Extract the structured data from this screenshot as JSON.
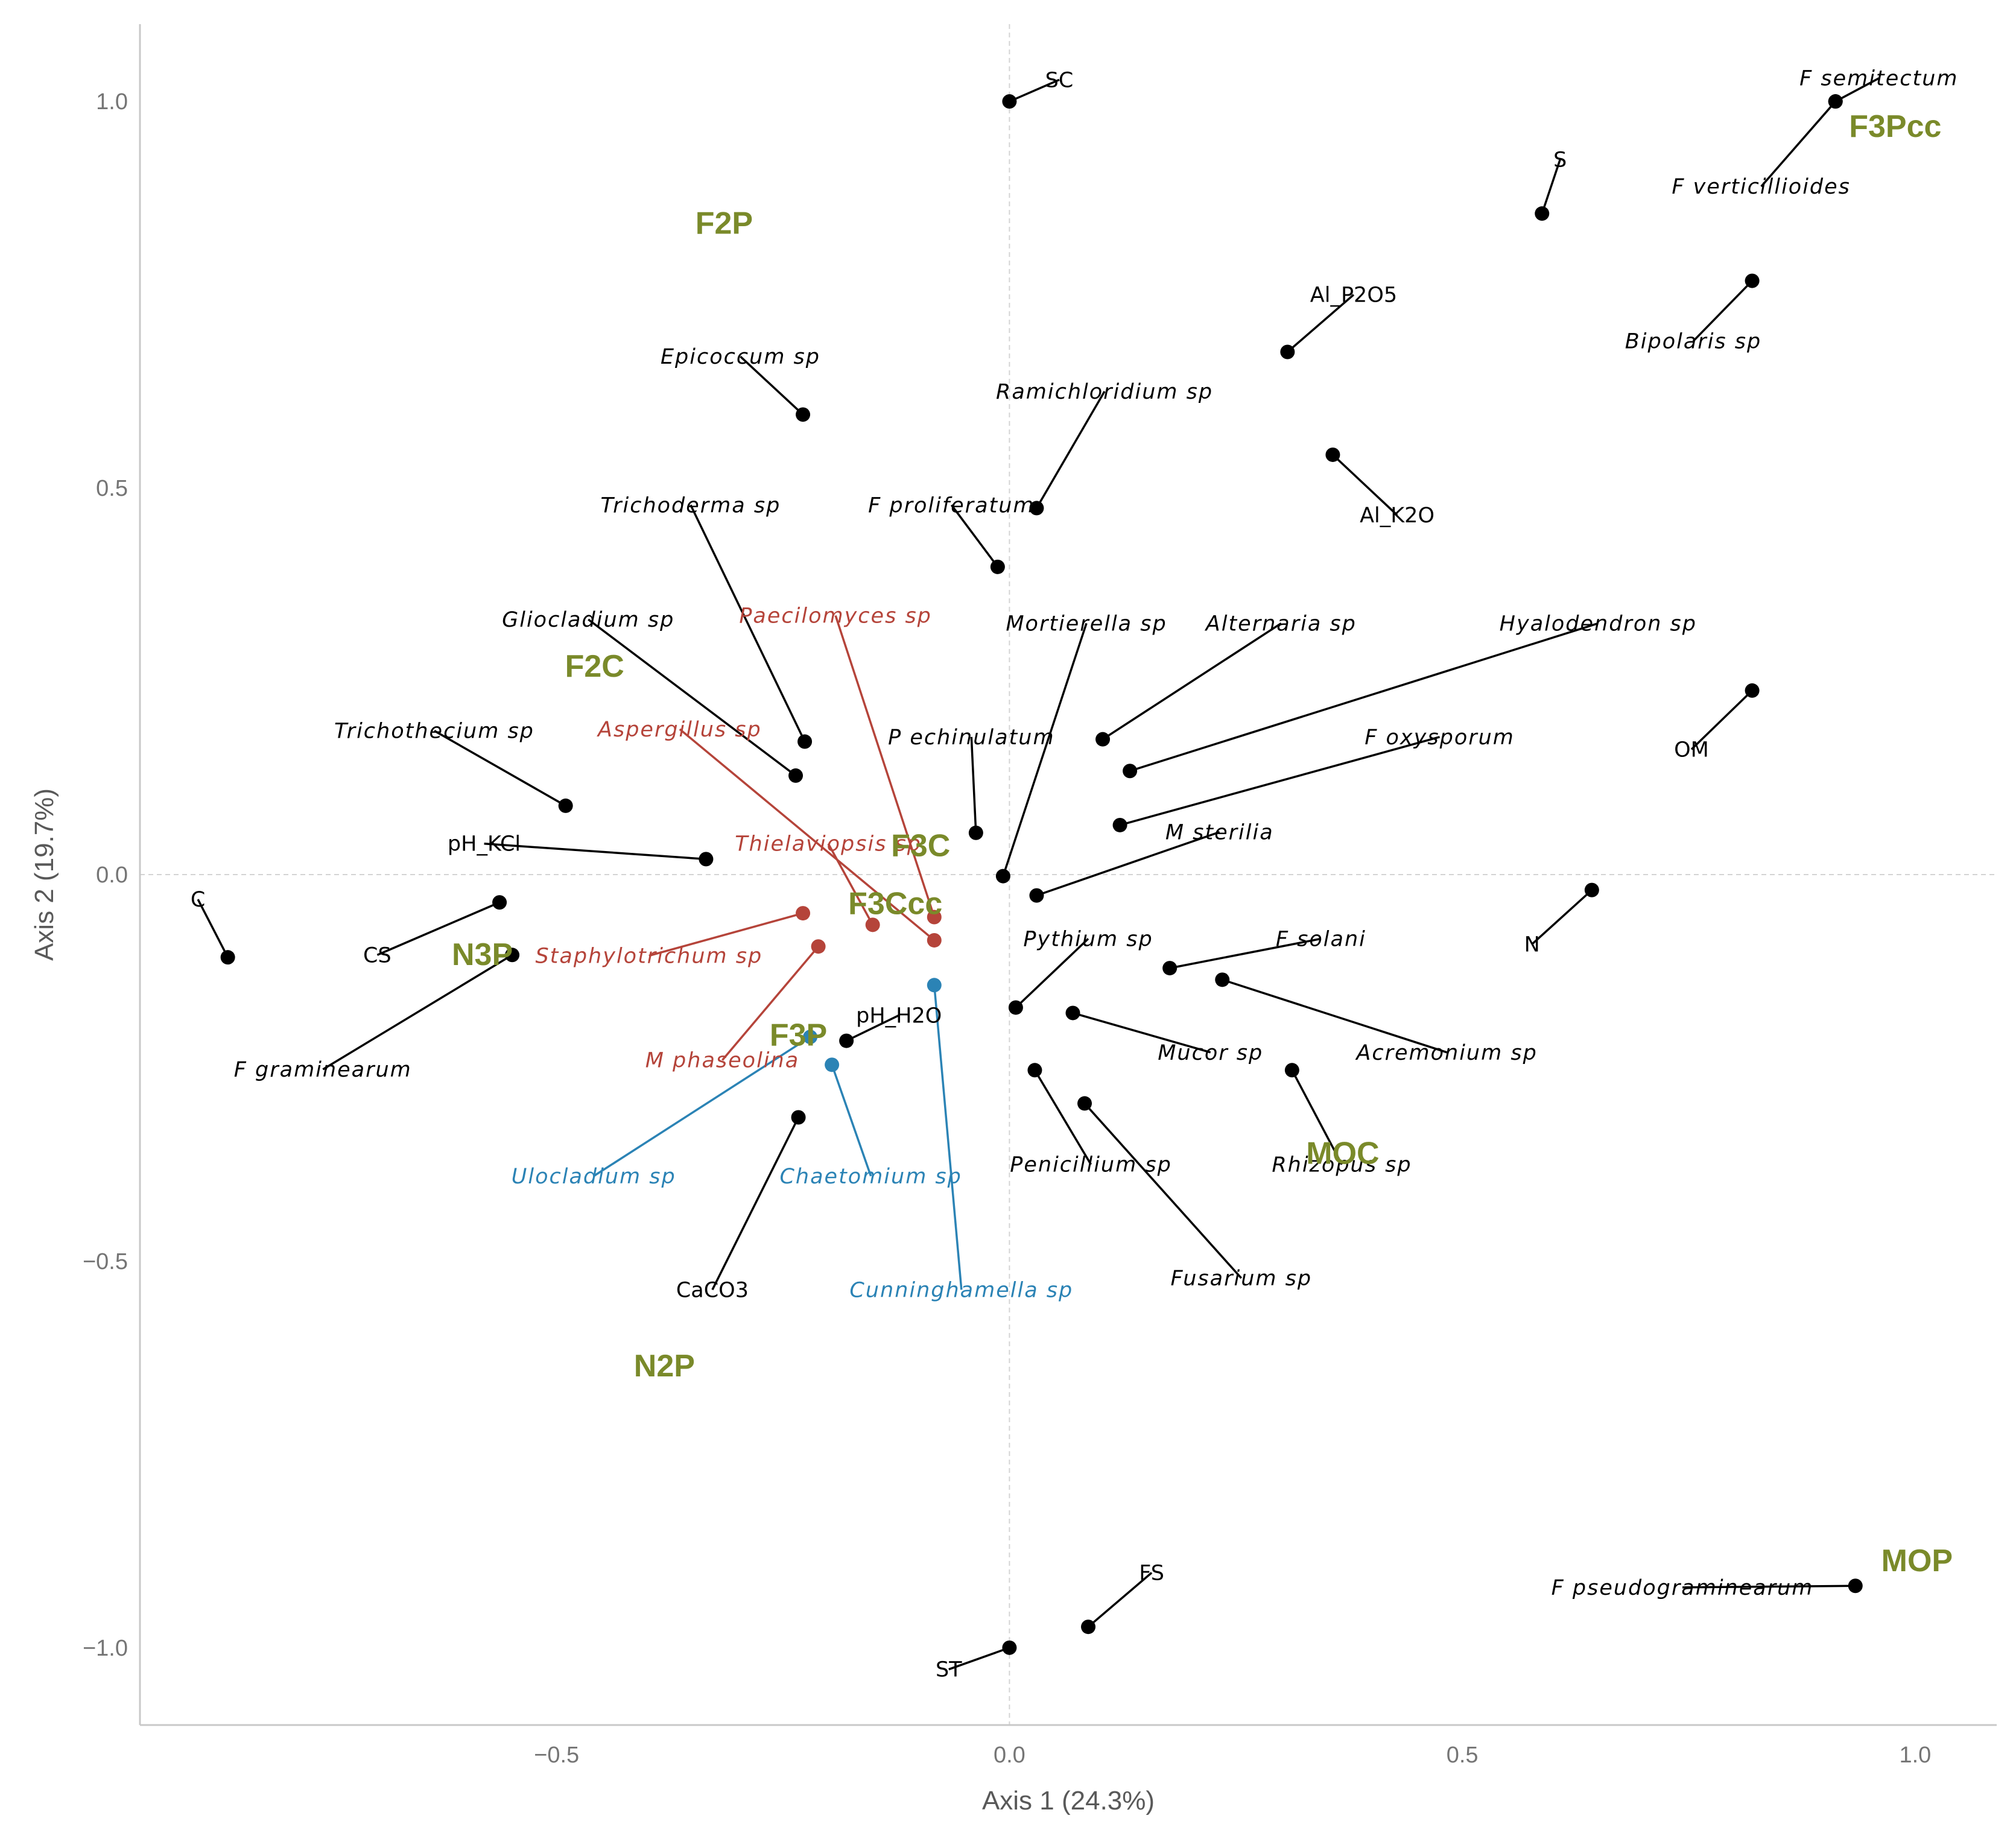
{
  "chart_data": {
    "type": "scatter",
    "title": "",
    "xlabel": "Axis 1 (24.3%)",
    "ylabel": "Axis 2 (19.7%)",
    "xlim": [
      -0.96,
      1.09
    ],
    "ylim": [
      -1.1,
      1.1
    ],
    "xticks": [
      -0.5,
      0.0,
      0.5,
      1.0
    ],
    "yticks": [
      -1.0,
      -0.5,
      0.0,
      0.5,
      1.0
    ],
    "xtick_labels": [
      "−0.5",
      "0.0",
      "0.5",
      "1.0"
    ],
    "ytick_labels": [
      "−1.0",
      "−0.5",
      "0.0",
      "0.5",
      "1.0"
    ],
    "colors": {
      "black": "#000000",
      "red": "#b5443a",
      "blue": "#2b83b5",
      "group": "#7a8a2a",
      "grid": "#d4d4d4"
    },
    "points": [
      {
        "label": "SC",
        "x": 0.0,
        "y": 1.0,
        "lx": 0.055,
        "ly": 1.028,
        "color": "black",
        "italic": false
      },
      {
        "label": "F semitectum",
        "x": 0.912,
        "y": 1.0,
        "lx": 0.96,
        "ly": 1.03,
        "color": "black",
        "italic": true
      },
      {
        "label": "F verticillioides",
        "x": 0.912,
        "y": 1.0,
        "lx": 0.83,
        "ly": 0.89,
        "color": "black",
        "italic": true
      },
      {
        "label": "S",
        "x": 0.588,
        "y": 0.855,
        "lx": 0.608,
        "ly": 0.925,
        "color": "black",
        "italic": false
      },
      {
        "label": "Al_P2O5",
        "x": 0.307,
        "y": 0.676,
        "lx": 0.38,
        "ly": 0.75,
        "color": "black",
        "italic": false
      },
      {
        "label": "Bipolaris sp",
        "x": 0.82,
        "y": 0.768,
        "lx": 0.755,
        "ly": 0.69,
        "color": "black",
        "italic": true
      },
      {
        "label": "Epicoccum sp",
        "x": -0.228,
        "y": 0.595,
        "lx": -0.297,
        "ly": 0.67,
        "color": "black",
        "italic": true
      },
      {
        "label": "Ramichloridium sp",
        "x": 0.03,
        "y": 0.474,
        "lx": 0.105,
        "ly": 0.625,
        "color": "black",
        "italic": true
      },
      {
        "label": "Al_K2O",
        "x": 0.357,
        "y": 0.543,
        "lx": 0.428,
        "ly": 0.465,
        "color": "black",
        "italic": false
      },
      {
        "label": "Trichoderma sp",
        "x": -0.226,
        "y": 0.172,
        "lx": -0.352,
        "ly": 0.478,
        "color": "black",
        "italic": true
      },
      {
        "label": "F proliferatum",
        "x": -0.013,
        "y": 0.398,
        "lx": -0.064,
        "ly": 0.478,
        "color": "black",
        "italic": true
      },
      {
        "label": "Gliocladium sp",
        "x": -0.236,
        "y": 0.128,
        "lx": -0.465,
        "ly": 0.33,
        "color": "black",
        "italic": true
      },
      {
        "label": "Mortierella sp",
        "x": -0.007,
        "y": -0.002,
        "lx": 0.085,
        "ly": 0.325,
        "color": "black",
        "italic": true
      },
      {
        "label": "Alternaria sp",
        "x": 0.103,
        "y": 0.175,
        "lx": 0.3,
        "ly": 0.325,
        "color": "black",
        "italic": true
      },
      {
        "label": "Hyalodendron sp",
        "x": 0.133,
        "y": 0.134,
        "lx": 0.65,
        "ly": 0.325,
        "color": "black",
        "italic": true
      },
      {
        "label": "OM",
        "x": 0.82,
        "y": 0.238,
        "lx": 0.753,
        "ly": 0.162,
        "color": "black",
        "italic": false
      },
      {
        "label": "Trichothecium sp",
        "x": -0.49,
        "y": 0.089,
        "lx": -0.635,
        "ly": 0.186,
        "color": "black",
        "italic": true
      },
      {
        "label": "P echinulatum",
        "x": -0.037,
        "y": 0.054,
        "lx": -0.042,
        "ly": 0.178,
        "color": "black",
        "italic": true
      },
      {
        "label": "F oxysporum",
        "x": 0.122,
        "y": 0.064,
        "lx": 0.475,
        "ly": 0.178,
        "color": "black",
        "italic": true
      },
      {
        "label": "pH_KCl",
        "x": -0.335,
        "y": 0.02,
        "lx": -0.58,
        "ly": 0.04,
        "color": "black",
        "italic": false
      },
      {
        "label": "M sterilia",
        "x": 0.03,
        "y": -0.027,
        "lx": 0.232,
        "ly": 0.055,
        "color": "black",
        "italic": true
      },
      {
        "label": "C",
        "x": -0.863,
        "y": -0.107,
        "lx": -0.896,
        "ly": -0.032,
        "color": "black",
        "italic": false
      },
      {
        "label": "CS",
        "x": -0.563,
        "y": -0.036,
        "lx": -0.698,
        "ly": -0.104,
        "color": "black",
        "italic": false
      },
      {
        "label": "N",
        "x": 0.643,
        "y": -0.02,
        "lx": 0.577,
        "ly": -0.09,
        "color": "black",
        "italic": false
      },
      {
        "label": "Pythium sp",
        "x": 0.007,
        "y": -0.172,
        "lx": 0.087,
        "ly": -0.083,
        "color": "black",
        "italic": true
      },
      {
        "label": "F solani",
        "x": 0.177,
        "y": -0.121,
        "lx": 0.344,
        "ly": -0.083,
        "color": "black",
        "italic": true
      },
      {
        "label": "F graminearum",
        "x": -0.549,
        "y": -0.104,
        "lx": -0.758,
        "ly": -0.252,
        "color": "black",
        "italic": true
      },
      {
        "label": "pH_H2O",
        "x": -0.18,
        "y": -0.215,
        "lx": -0.122,
        "ly": -0.182,
        "color": "black",
        "italic": false
      },
      {
        "label": "Acremonium sp",
        "x": 0.235,
        "y": -0.136,
        "lx": 0.483,
        "ly": -0.23,
        "color": "black",
        "italic": true
      },
      {
        "label": "Mucor sp",
        "x": 0.07,
        "y": -0.179,
        "lx": 0.222,
        "ly": -0.23,
        "color": "black",
        "italic": true
      },
      {
        "label": "Penicillium sp",
        "x": 0.028,
        "y": -0.253,
        "lx": 0.09,
        "ly": -0.375,
        "color": "black",
        "italic": true
      },
      {
        "label": "Rhizopus sp",
        "x": 0.312,
        "y": -0.253,
        "lx": 0.367,
        "ly": -0.375,
        "color": "black",
        "italic": true
      },
      {
        "label": "Fusarium sp",
        "x": 0.083,
        "y": -0.296,
        "lx": 0.256,
        "ly": -0.522,
        "color": "black",
        "italic": true
      },
      {
        "label": "CaCO3",
        "x": -0.233,
        "y": -0.314,
        "lx": -0.328,
        "ly": -0.537,
        "color": "black",
        "italic": false
      },
      {
        "label": "FS",
        "x": 0.087,
        "y": -0.973,
        "lx": 0.157,
        "ly": -0.903,
        "color": "black",
        "italic": false
      },
      {
        "label": "F pseudograminearum",
        "x": 0.934,
        "y": -0.92,
        "lx": 0.743,
        "ly": -0.922,
        "color": "black",
        "italic": true
      },
      {
        "label": "ST",
        "x": 0.0,
        "y": -1.0,
        "lx": -0.067,
        "ly": -1.028,
        "color": "black",
        "italic": false
      },
      {
        "label": "Paecilomyces sp",
        "x": -0.083,
        "y": -0.055,
        "lx": -0.192,
        "ly": 0.335,
        "color": "red",
        "italic": true
      },
      {
        "label": "Aspergillus sp",
        "x": -0.083,
        "y": -0.085,
        "lx": -0.364,
        "ly": 0.188,
        "color": "red",
        "italic": true
      },
      {
        "label": "Thielaviopsis sp",
        "x": -0.151,
        "y": -0.065,
        "lx": -0.2,
        "ly": 0.04,
        "color": "red",
        "italic": true
      },
      {
        "label": "Staphylotrichum sp",
        "x": -0.228,
        "y": -0.05,
        "lx": -0.398,
        "ly": -0.105,
        "color": "red",
        "italic": true
      },
      {
        "label": "M phaseolina",
        "x": -0.211,
        "y": -0.093,
        "lx": -0.317,
        "ly": -0.24,
        "color": "red",
        "italic": true
      },
      {
        "label": "Ulocladium sp",
        "x": -0.22,
        "y": -0.21,
        "lx": -0.459,
        "ly": -0.39,
        "color": "blue",
        "italic": true
      },
      {
        "label": "Chaetomium sp",
        "x": -0.196,
        "y": -0.246,
        "lx": -0.153,
        "ly": -0.39,
        "color": "blue",
        "italic": true
      },
      {
        "label": "Cunninghamella sp",
        "x": -0.083,
        "y": -0.143,
        "lx": -0.053,
        "ly": -0.537,
        "color": "blue",
        "italic": true
      }
    ],
    "groups": [
      {
        "label": "F3Pcc",
        "x": 0.978,
        "y": 0.968
      },
      {
        "label": "F2P",
        "x": -0.315,
        "y": 0.843
      },
      {
        "label": "F2C",
        "x": -0.458,
        "y": 0.27
      },
      {
        "label": "F3C",
        "x": -0.098,
        "y": 0.038
      },
      {
        "label": "F3Ccc",
        "x": -0.126,
        "y": -0.037
      },
      {
        "label": "N3P",
        "x": -0.582,
        "y": -0.103
      },
      {
        "label": "F3P",
        "x": -0.233,
        "y": -0.207
      },
      {
        "label": "MOC",
        "x": 0.368,
        "y": -0.36
      },
      {
        "label": "N2P",
        "x": -0.381,
        "y": -0.635
      },
      {
        "label": "MOP",
        "x": 1.002,
        "y": -0.887
      }
    ]
  }
}
